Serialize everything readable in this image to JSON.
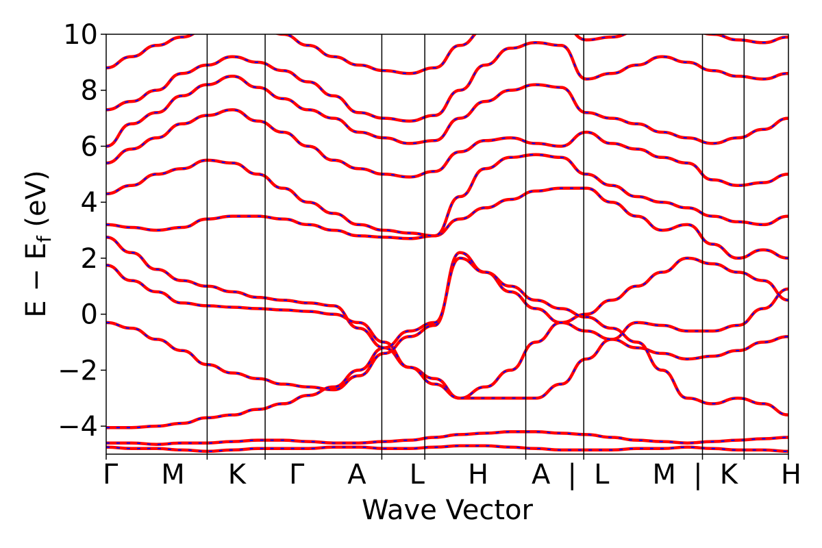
{
  "chart_data": {
    "type": "line",
    "title": "",
    "xlabel": "Wave Vector",
    "ylabel": "E − E",
    "ylabel_sub": "f",
    "ylabel_unit": " (eV)",
    "ylim": [
      -5,
      10
    ],
    "yticks": [
      {
        "value": -4,
        "label": "−4"
      },
      {
        "value": -2,
        "label": "−2"
      },
      {
        "value": 0,
        "label": "0"
      },
      {
        "value": 2,
        "label": "2"
      },
      {
        "value": 4,
        "label": "4"
      },
      {
        "value": 6,
        "label": "6"
      },
      {
        "value": 8,
        "label": "8"
      },
      {
        "value": 10,
        "label": "10"
      }
    ],
    "kpoints": [
      {
        "label": "Γ",
        "pos": 0.0
      },
      {
        "label": "M",
        "pos": 0.148
      },
      {
        "label": "K",
        "pos": 0.233
      },
      {
        "label": "Γ",
        "pos": 0.404
      },
      {
        "label": "A",
        "pos": 0.467
      },
      {
        "label": "L",
        "pos": 0.615
      },
      {
        "label": "H",
        "pos": 0.7
      },
      {
        "label": "A",
        "pos": 0.874
      },
      {
        "label": "|",
        "pos": 0.874
      },
      {
        "label": "L",
        "pos": 0.874
      },
      {
        "label": "M",
        "pos": 0.935
      },
      {
        "label": "|",
        "pos": 0.935
      },
      {
        "label": "K",
        "pos": 0.935
      },
      {
        "label": "H",
        "pos": 1.0
      }
    ],
    "kpoint_axis_text": "Γ M K Γ A L H A|L M|K H",
    "series": [
      {
        "values": [
          2.75,
          2.2,
          1.6,
          1.2,
          1.0,
          0.8,
          0.6,
          0.5,
          0.4,
          0.3,
          -0.5,
          -1.2,
          -1.9,
          -2.3,
          -3.0,
          -3.0,
          -3.0,
          -3.0,
          -2.5,
          -1.6,
          -0.9,
          -0.3,
          -0.4,
          -0.6,
          -0.6,
          -0.4,
          0.2,
          0.9
        ]
      },
      {
        "values": [
          1.75,
          1.2,
          0.8,
          0.4,
          0.3,
          0.25,
          0.2,
          0.15,
          0.1,
          0.0,
          -0.3,
          -1.0,
          -1.9,
          -2.5,
          -3.0,
          -2.6,
          -2.0,
          -1.0,
          -0.3,
          0.0,
          0.5,
          1.0,
          1.5,
          2.0,
          1.8,
          1.5,
          1.2,
          0.5
        ]
      },
      {
        "values": [
          -0.3,
          -0.5,
          -0.9,
          -1.3,
          -1.8,
          -2.1,
          -2.3,
          -2.5,
          -2.6,
          -2.7,
          -2.2,
          -1.4,
          -0.8,
          -0.4,
          2.2,
          1.5,
          0.8,
          0.2,
          -0.3,
          -0.6,
          -0.9,
          -1.2,
          -1.4,
          -1.6,
          -1.5,
          -1.3,
          -1.0,
          -0.8
        ]
      },
      {
        "values": [
          -4.05,
          -4.05,
          -4.0,
          -3.9,
          -3.7,
          -3.6,
          -3.4,
          -3.2,
          -2.9,
          -2.6,
          -2.0,
          -1.2,
          -0.6,
          -0.3,
          2.0,
          1.5,
          1.0,
          0.5,
          0.2,
          -0.1,
          -0.5,
          -1.0,
          -2.0,
          -3.0,
          -3.2,
          -3.0,
          -3.2,
          -3.6
        ]
      },
      {
        "values": [
          -4.6,
          -4.6,
          -4.65,
          -4.6,
          -4.6,
          -4.55,
          -4.5,
          -4.5,
          -4.55,
          -4.6,
          -4.6,
          -4.55,
          -4.5,
          -4.4,
          -4.3,
          -4.25,
          -4.2,
          -4.2,
          -4.25,
          -4.3,
          -4.4,
          -4.5,
          -4.55,
          -4.6,
          -4.55,
          -4.5,
          -4.45,
          -4.4
        ]
      },
      {
        "values": [
          -4.75,
          -4.8,
          -4.8,
          -4.85,
          -4.9,
          -4.85,
          -4.8,
          -4.8,
          -4.8,
          -4.75,
          -4.75,
          -4.8,
          -4.8,
          -4.75,
          -4.7,
          -4.7,
          -4.75,
          -4.8,
          -4.85,
          -4.85,
          -4.85,
          -4.8,
          -4.8,
          -4.75,
          -4.8,
          -4.85,
          -4.85,
          -4.9
        ]
      },
      {
        "values": [
          3.2,
          3.1,
          3.0,
          3.1,
          3.4,
          3.5,
          3.5,
          3.4,
          3.2,
          3.0,
          2.8,
          2.75,
          2.7,
          2.8,
          3.4,
          3.8,
          4.1,
          4.4,
          4.5,
          4.5,
          4.0,
          3.5,
          3.0,
          3.2,
          2.5,
          2.0,
          2.3,
          2.0
        ]
      },
      {
        "values": [
          4.3,
          4.6,
          5.0,
          5.2,
          5.5,
          5.4,
          5.0,
          4.5,
          4.0,
          3.6,
          3.2,
          3.0,
          2.9,
          2.8,
          4.2,
          5.2,
          5.6,
          5.7,
          5.6,
          5.0,
          4.6,
          4.2,
          4.0,
          3.8,
          3.5,
          3.3,
          3.2,
          3.5
        ]
      },
      {
        "values": [
          5.4,
          5.9,
          6.3,
          6.8,
          7.1,
          7.3,
          6.9,
          6.5,
          6.0,
          5.5,
          5.2,
          5.0,
          4.9,
          5.1,
          5.8,
          6.2,
          6.3,
          6.1,
          6.0,
          6.5,
          6.1,
          5.9,
          5.6,
          5.4,
          4.8,
          4.6,
          4.7,
          5.0
        ]
      },
      {
        "values": [
          6.0,
          6.8,
          7.2,
          7.8,
          8.2,
          8.5,
          8.1,
          7.7,
          7.3,
          7.0,
          6.5,
          6.3,
          6.1,
          6.2,
          7.0,
          7.6,
          8.0,
          8.2,
          8.1,
          7.2,
          7.0,
          6.8,
          6.5,
          6.3,
          6.1,
          6.3,
          6.6,
          7.0
        ]
      },
      {
        "values": [
          7.3,
          7.6,
          8.0,
          8.6,
          8.9,
          9.2,
          9.0,
          8.7,
          8.3,
          7.8,
          7.2,
          7.0,
          6.9,
          7.1,
          8.0,
          8.9,
          9.5,
          9.7,
          9.6,
          8.4,
          8.6,
          8.9,
          9.2,
          9.0,
          8.7,
          8.5,
          8.4,
          8.6
        ]
      },
      {
        "values": [
          8.8,
          9.2,
          9.6,
          9.9,
          10.2,
          10.4,
          10.3,
          10.0,
          9.6,
          9.2,
          8.9,
          8.7,
          8.6,
          8.8,
          9.6,
          10.2,
          10.5,
          10.6,
          10.4,
          9.8,
          9.9,
          10.1,
          10.3,
          10.2,
          10.0,
          9.8,
          9.7,
          9.9
        ]
      }
    ],
    "grid": false,
    "legend": "none",
    "colors": {
      "band_outer": "#ff0000",
      "band_inner": "#0000ff",
      "axes": "#000000",
      "kpoint_lines": "#000000"
    }
  }
}
